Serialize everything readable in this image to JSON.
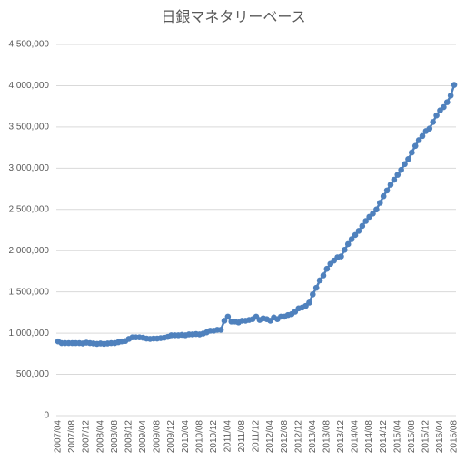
{
  "chart_data": {
    "type": "line",
    "title": "日銀マネタリーベース",
    "categories": [
      "2007/04",
      null,
      null,
      null,
      "2007/08",
      null,
      null,
      null,
      "2007/12",
      null,
      null,
      null,
      "2008/04",
      null,
      null,
      null,
      "2008/08",
      null,
      null,
      null,
      "2008/12",
      null,
      null,
      null,
      "2009/04",
      null,
      null,
      null,
      "2009/08",
      null,
      null,
      null,
      "2009/12",
      null,
      null,
      null,
      "2010/04",
      null,
      null,
      null,
      "2010/08",
      null,
      null,
      null,
      "2010/12",
      null,
      null,
      null,
      "2011/04",
      null,
      null,
      null,
      "2011/08",
      null,
      null,
      null,
      "2011/12",
      null,
      null,
      null,
      "2012/04",
      null,
      null,
      null,
      "2012/08",
      null,
      null,
      null,
      "2012/12",
      null,
      null,
      null,
      "2013/04",
      null,
      null,
      null,
      "2013/08",
      null,
      null,
      null,
      "2013/12",
      null,
      null,
      null,
      "2014/04",
      null,
      null,
      null,
      "2014/08",
      null,
      null,
      null,
      "2014/12",
      null,
      null,
      null,
      "2015/04",
      null,
      null,
      null,
      "2015/08",
      null,
      null,
      null,
      "2015/12",
      null,
      null,
      null,
      "2016/04",
      null,
      null,
      null,
      "2016/08"
    ],
    "values": [
      900000,
      880000,
      880000,
      880000,
      880000,
      880000,
      880000,
      875000,
      885000,
      880000,
      875000,
      870000,
      875000,
      870000,
      875000,
      880000,
      880000,
      890000,
      900000,
      905000,
      930000,
      950000,
      950000,
      950000,
      945000,
      935000,
      930000,
      935000,
      935000,
      940000,
      945000,
      955000,
      975000,
      975000,
      975000,
      980000,
      975000,
      985000,
      985000,
      990000,
      985000,
      995000,
      1010000,
      1030000,
      1030000,
      1040000,
      1040000,
      1150000,
      1200000,
      1140000,
      1140000,
      1130000,
      1150000,
      1150000,
      1160000,
      1170000,
      1200000,
      1160000,
      1180000,
      1170000,
      1150000,
      1190000,
      1170000,
      1200000,
      1200000,
      1220000,
      1230000,
      1260000,
      1300000,
      1310000,
      1330000,
      1370000,
      1470000,
      1550000,
      1640000,
      1700000,
      1780000,
      1840000,
      1880000,
      1920000,
      1930000,
      2010000,
      2080000,
      2140000,
      2190000,
      2240000,
      2300000,
      2360000,
      2410000,
      2450000,
      2500000,
      2580000,
      2660000,
      2730000,
      2800000,
      2860000,
      2920000,
      2980000,
      3050000,
      3110000,
      3190000,
      3270000,
      3340000,
      3390000,
      3450000,
      3480000,
      3560000,
      3640000,
      3700000,
      3740000,
      3800000,
      3880000,
      4010000
    ],
    "color": "#4f81bd",
    "ylim": [
      0,
      4500000
    ],
    "yticks": [
      0,
      {
        "value": 500000,
        "label": "500,000"
      },
      {
        "value": 1000000,
        "label": "1,000,000"
      },
      {
        "value": 1500000,
        "label": "1,500,000"
      },
      {
        "value": 2000000,
        "label": "2,000,000"
      },
      {
        "value": 2500000,
        "label": "2,500,000"
      },
      {
        "value": 3000000,
        "label": "3,000,000"
      },
      {
        "value": 3500000,
        "label": "3,500,000"
      },
      {
        "value": 4000000,
        "label": "4,000,000"
      },
      {
        "value": 4500000,
        "label": "4,500,000"
      }
    ],
    "grid": true
  }
}
